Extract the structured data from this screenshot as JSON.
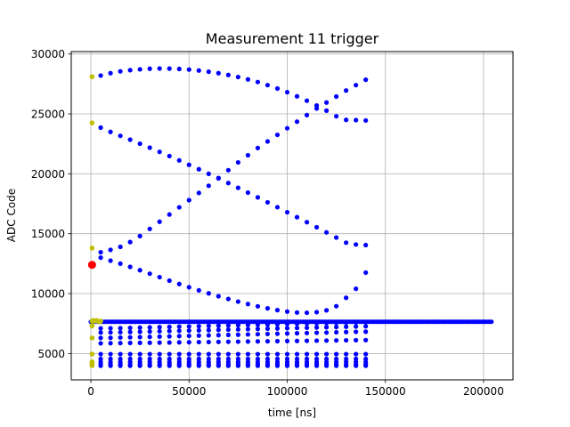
{
  "chart_data": {
    "type": "scatter",
    "title": "Measurement 11 trigger",
    "xlabel": "time [ns]",
    "ylabel": "ADC Code",
    "xlim": [
      -10000,
      215000
    ],
    "ylim": [
      2800,
      30200
    ],
    "grid": true,
    "xticks": [
      0,
      50000,
      100000,
      150000,
      200000
    ],
    "yticks": [
      5000,
      10000,
      15000,
      20000,
      25000,
      30000
    ],
    "colors": {
      "blue": "#0000ff",
      "olive": "#bfbf00",
      "red": "#ff0000",
      "grid": "#b0b0b0"
    },
    "blue_x_start": 5000,
    "blue_x_step": 5000,
    "curves": [
      {
        "x_end": 140000,
        "y": [
          28200,
          28400,
          28550,
          28650,
          28720,
          28770,
          28790,
          28780,
          28750,
          28700,
          28620,
          28520,
          28400,
          28250,
          28080,
          27880,
          27660,
          27400,
          27120,
          26810,
          26470,
          26100,
          25700,
          25270,
          24800,
          24500,
          24480,
          24450
        ]
      },
      {
        "x_end": 140000,
        "y": [
          23850,
          23500,
          23170,
          22850,
          22510,
          22180,
          21830,
          21480,
          21120,
          20750,
          20380,
          20000,
          19620,
          19230,
          18830,
          18430,
          18030,
          17620,
          17210,
          16790,
          16380,
          15960,
          15540,
          15110,
          14680,
          14250,
          14100,
          14050
        ]
      },
      {
        "x_end": 140000,
        "y": [
          13450,
          13650,
          13900,
          14300,
          14800,
          15400,
          16000,
          16600,
          17200,
          17800,
          18400,
          19000,
          19650,
          20300,
          20950,
          21550,
          22150,
          22700,
          23250,
          23800,
          24350,
          24900,
          25450,
          25950,
          26450,
          26950,
          27400,
          27850
        ]
      },
      {
        "x_end": 140000,
        "y": [
          13000,
          12750,
          12500,
          12230,
          11950,
          11660,
          11370,
          11080,
          10800,
          10530,
          10270,
          10020,
          9780,
          9550,
          9330,
          9130,
          8940,
          8770,
          8620,
          8500,
          8420,
          8400,
          8450,
          8600,
          8950,
          9650,
          10400,
          11750
        ]
      },
      {
        "x_end": 140000,
        "y": [
          7100,
          7110,
          7120,
          7140,
          7160,
          7180,
          7200,
          7220,
          7240,
          7260,
          7280,
          7300,
          7320,
          7340,
          7360,
          7380,
          7400,
          7420,
          7440,
          7460,
          7480,
          7500,
          7520,
          7540,
          7560,
          7580,
          7600,
          7620
        ]
      },
      {
        "x_end": 140000,
        "y": [
          6750,
          6760,
          6770,
          6790,
          6810,
          6830,
          6850,
          6870,
          6890,
          6910,
          6930,
          6950,
          6970,
          6990,
          7010,
          7030,
          7050,
          7070,
          7090,
          7110,
          7130,
          7150,
          7170,
          7190,
          7210,
          7230,
          7250,
          7270
        ]
      },
      {
        "x_end": 140000,
        "y": [
          6300,
          6310,
          6330,
          6350,
          6370,
          6390,
          6410,
          6430,
          6450,
          6470,
          6490,
          6510,
          6530,
          6550,
          6570,
          6590,
          6610,
          6630,
          6650,
          6670,
          6690,
          6710,
          6730,
          6750,
          6770,
          6790,
          6810,
          6820
        ]
      },
      {
        "x_end": 140000,
        "y": [
          5850,
          5860,
          5870,
          5880,
          5890,
          5900,
          5910,
          5920,
          5930,
          5940,
          5950,
          5960,
          5970,
          5980,
          5990,
          6000,
          6010,
          6020,
          6030,
          6040,
          6050,
          6060,
          6070,
          6080,
          6090,
          6100,
          6110,
          6120
        ]
      },
      {
        "x_end": 140000,
        "y": [
          4950,
          4950,
          4950,
          4950,
          4950,
          4950,
          4950,
          4950,
          4950,
          4950,
          4950,
          4950,
          4950,
          4950,
          4950,
          4950,
          4950,
          4950,
          4950,
          4950,
          4950,
          4950,
          4950,
          4950,
          4950,
          4950,
          4950,
          4950
        ]
      },
      {
        "x_end": 140000,
        "y": [
          4550,
          4550,
          4550,
          4550,
          4550,
          4550,
          4550,
          4550,
          4550,
          4550,
          4550,
          4550,
          4550,
          4550,
          4550,
          4550,
          4550,
          4550,
          4550,
          4550,
          4550,
          4550,
          4550,
          4550,
          4550,
          4550,
          4550,
          4550
        ]
      },
      {
        "x_end": 140000,
        "y": [
          4300,
          4300,
          4300,
          4300,
          4300,
          4300,
          4300,
          4300,
          4300,
          4300,
          4300,
          4300,
          4300,
          4300,
          4300,
          4300,
          4300,
          4300,
          4300,
          4300,
          4300,
          4300,
          4300,
          4300,
          4300,
          4300,
          4300,
          4300
        ]
      },
      {
        "x_end": 140000,
        "y": [
          4100,
          4100,
          4100,
          4100,
          4100,
          4100,
          4100,
          4100,
          4100,
          4100,
          4100,
          4100,
          4100,
          4100,
          4100,
          4100,
          4100,
          4100,
          4100,
          4100,
          4100,
          4100,
          4100,
          4100,
          4100,
          4100,
          4100,
          4100
        ]
      },
      {
        "x_end": 140000,
        "y": [
          3980,
          3980,
          3980,
          3980,
          3980,
          3980,
          3980,
          3980,
          3980,
          3980,
          3980,
          3980,
          3980,
          3980,
          3980,
          3980,
          3980,
          3980,
          3980,
          3980,
          3980,
          3980,
          3980,
          3980,
          3980,
          3980,
          3980,
          3980
        ]
      }
    ],
    "baseline": {
      "y": 7650,
      "x_start": 0,
      "x_end": 204000
    },
    "olive_points": [
      {
        "x": 600,
        "y": 28100
      },
      {
        "x": 600,
        "y": 24250
      },
      {
        "x": 600,
        "y": 13800
      },
      {
        "x": 600,
        "y": 7700
      },
      {
        "x": 600,
        "y": 7300
      },
      {
        "x": 600,
        "y": 6300
      },
      {
        "x": 600,
        "y": 4950
      },
      {
        "x": 600,
        "y": 4300
      },
      {
        "x": 600,
        "y": 4150
      },
      {
        "x": 600,
        "y": 4000
      },
      {
        "x": 1200,
        "y": 7750
      },
      {
        "x": 2000,
        "y": 7700
      },
      {
        "x": 2800,
        "y": 7750
      },
      {
        "x": 3500,
        "y": 7700
      },
      {
        "x": 4300,
        "y": 7650
      },
      {
        "x": 5000,
        "y": 7700
      }
    ],
    "red_points": [
      {
        "x": 600,
        "y": 12400
      }
    ]
  }
}
